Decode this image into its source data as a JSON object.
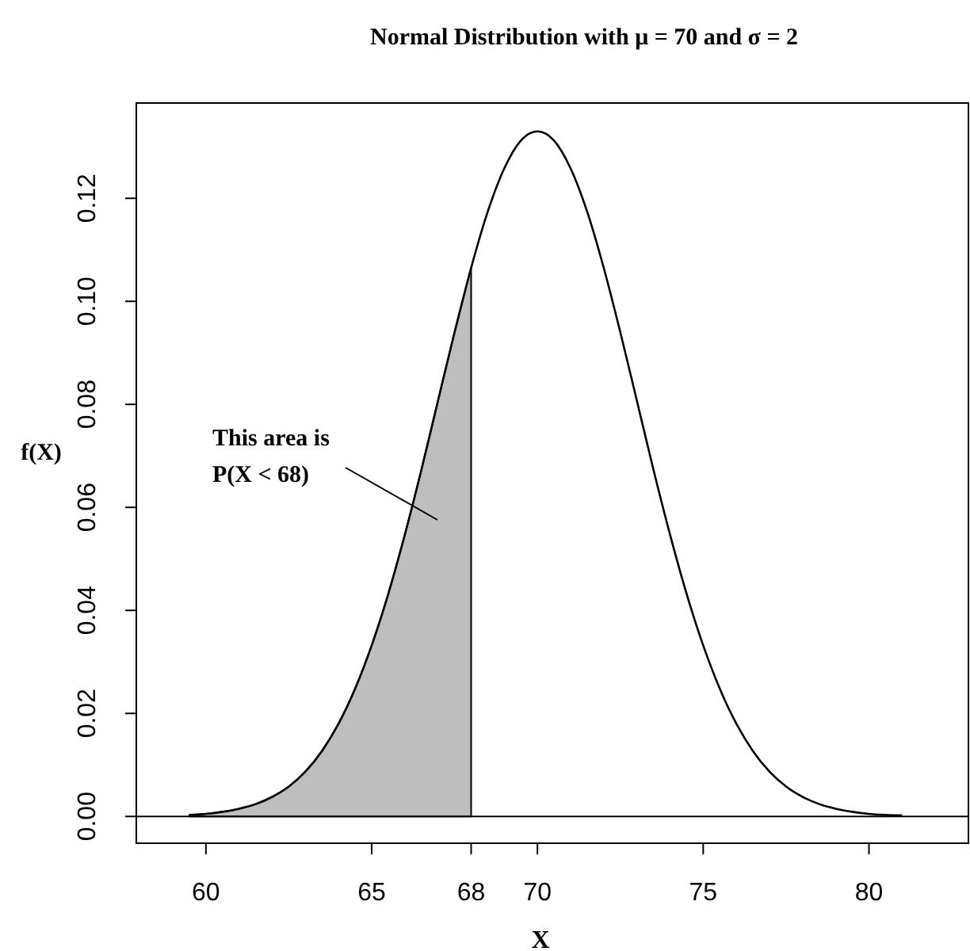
{
  "chart_data": {
    "type": "line",
    "title": "Normal Distribution with μ = 70  and σ = 2",
    "xlabel": "X",
    "ylabel": "f(X)",
    "xlim": [
      57.9,
      83
    ],
    "ylim": [
      -0.0052,
      0.1385
    ],
    "xticks": [
      60,
      65,
      68,
      70,
      75,
      80
    ],
    "yticks": [
      {
        "value": 0,
        "label": "0.00"
      },
      {
        "value": 0.02,
        "label": "0.02"
      },
      {
        "value": 0.04,
        "label": "0.04"
      },
      {
        "value": 0.06,
        "label": "0.06"
      },
      {
        "value": 0.08,
        "label": "0.08"
      },
      {
        "value": 0.1,
        "label": "0.10"
      },
      {
        "value": 0.12,
        "label": "0.12"
      }
    ],
    "grid": false,
    "marker": "none",
    "line_style": "solid",
    "series": [
      {
        "type": "area",
        "color": "#bebebe",
        "x": [
          59.5,
          60,
          60.5,
          61,
          61.5,
          62,
          62.5,
          63,
          63.5,
          64,
          64.5,
          65,
          65.5,
          66,
          66.5,
          67,
          67.5,
          68
        ],
        "values": [
          0.0003,
          0.0005,
          0.0009,
          0.0015,
          0.0024,
          0.0038,
          0.0058,
          0.0087,
          0.0127,
          0.018,
          0.0248,
          0.0332,
          0.0432,
          0.0547,
          0.0673,
          0.0807,
          0.094,
          0.1065
        ]
      },
      {
        "color": "#000000",
        "x": [
          59.5,
          60,
          60.5,
          61,
          61.5,
          62,
          62.5,
          63,
          63.5,
          64,
          64.5,
          65,
          65.5,
          66,
          66.5,
          67,
          67.5,
          68,
          68.5,
          69,
          69.5,
          70,
          70.5,
          71,
          71.5,
          72,
          72.5,
          73,
          73.5,
          74,
          74.5,
          75,
          75.5,
          76,
          76.5,
          77,
          77.5,
          78,
          78.5,
          79,
          79.5,
          80,
          80.5,
          81
        ],
        "values": [
          0.0003,
          0.0005,
          0.0009,
          0.0015,
          0.0024,
          0.0038,
          0.0058,
          0.0087,
          0.0127,
          0.018,
          0.0248,
          0.0332,
          0.0432,
          0.0547,
          0.0673,
          0.0807,
          0.094,
          0.1065,
          0.1174,
          0.1258,
          0.1312,
          0.133,
          0.1312,
          0.1258,
          0.1174,
          0.1065,
          0.094,
          0.0807,
          0.0673,
          0.0547,
          0.0432,
          0.0332,
          0.0248,
          0.018,
          0.0127,
          0.0087,
          0.0058,
          0.0038,
          0.0024,
          0.0015,
          0.0009,
          0.0005,
          0.0003,
          0.0002
        ]
      }
    ],
    "ref_lines": [
      {
        "axis": "y",
        "value": 0,
        "color": "#000000"
      }
    ],
    "annotations": [
      "This area is\nP(X < 68)"
    ]
  }
}
